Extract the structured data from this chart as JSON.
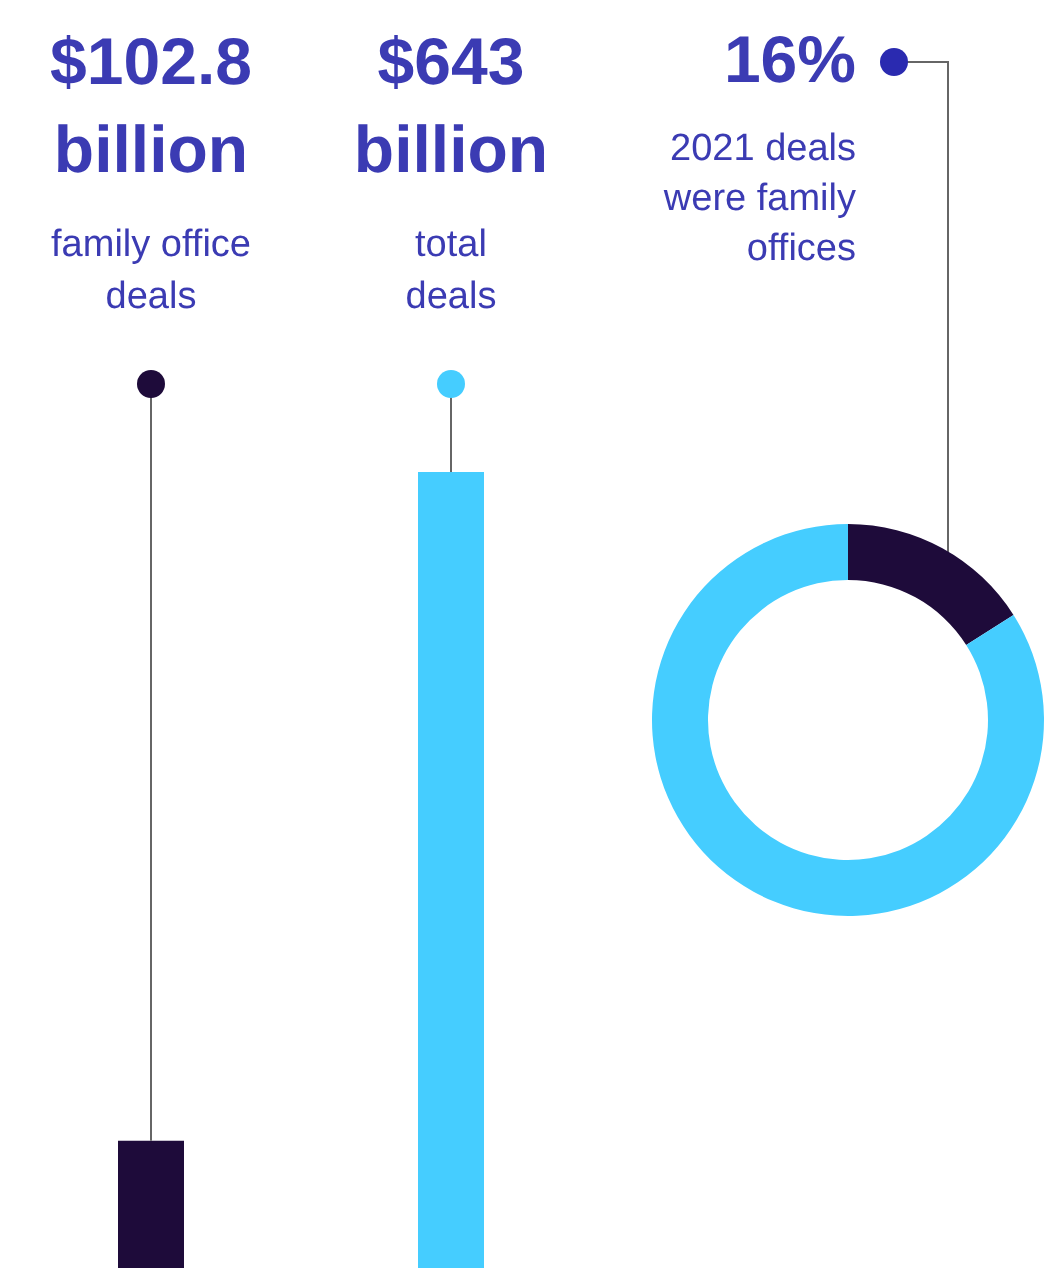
{
  "chart_data": [
    {
      "type": "bar",
      "categories": [
        "family office deals",
        "total deals"
      ],
      "values": [
        102.8,
        643
      ],
      "colors": [
        "#1e0b3a",
        "#45cdff"
      ],
      "value_labels": [
        "$102.8 billion",
        "$643 billion"
      ]
    },
    {
      "type": "donut",
      "categories": [
        "2021 deals were family offices",
        null
      ],
      "values": [
        16,
        84
      ],
      "colors": [
        "#1e0b3a",
        "#45cdff"
      ],
      "value_labels": [
        "16%",
        null
      ]
    }
  ]
}
